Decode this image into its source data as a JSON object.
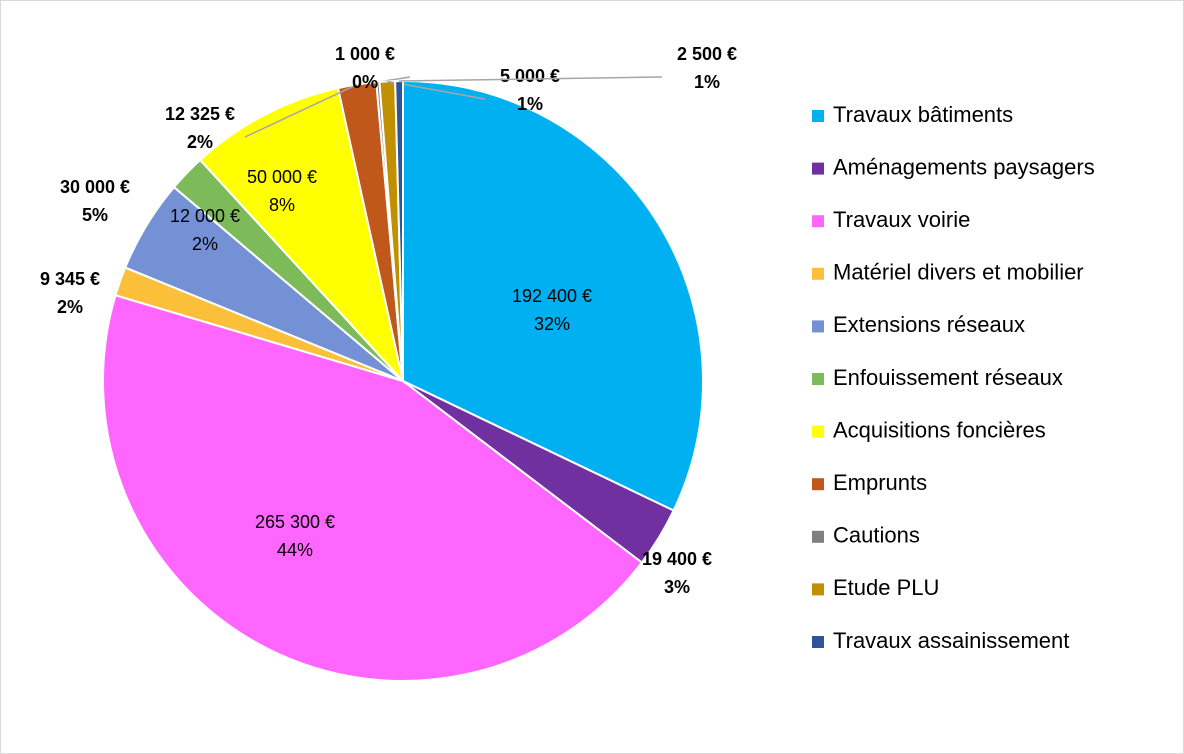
{
  "chart_data": {
    "type": "pie",
    "categories": [
      "Travaux bâtiments",
      "Aménagements paysagers",
      "Travaux voirie",
      "Matériel divers et mobilier",
      "Extensions réseaux",
      "Enfouissement réseaux",
      "Acquisitions foncières",
      "Emprunts",
      "Cautions",
      "Etude PLU",
      "Travaux assainissement"
    ],
    "values": [
      192400,
      19400,
      265300,
      9345,
      30000,
      12000,
      50000,
      12325,
      1000,
      5000,
      2500
    ],
    "value_labels": [
      "192 400 €",
      "19 400 €",
      "265 300 €",
      "9 345 €",
      "30 000 €",
      "12 000 €",
      "50 000 €",
      "12 325 €",
      "1 000 €",
      "5 000 €",
      "2 500 €"
    ],
    "percent_labels": [
      "32%",
      "3%",
      "44%",
      "2%",
      "5%",
      "2%",
      "8%",
      "2%",
      "0%",
      "1%",
      "1%"
    ],
    "colors": [
      "#00b0f0",
      "#7030a0",
      "#ff66ff",
      "#fbbf3a",
      "#7391d4",
      "#7cba5a",
      "#ffff00",
      "#c0581b",
      "#808080",
      "#c09000",
      "#2f5597"
    ],
    "legend": "right"
  }
}
